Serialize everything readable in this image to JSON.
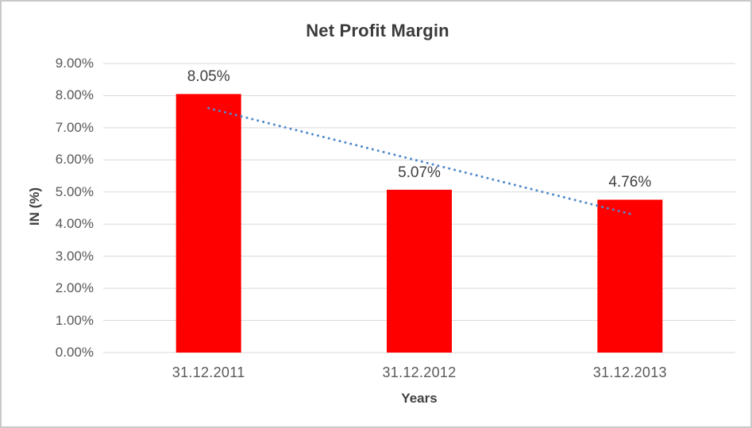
{
  "chart_data": {
    "type": "bar",
    "title": "Net Profit Margin",
    "categories": [
      "31.12.2011",
      "31.12.2012",
      "31.12.2013"
    ],
    "values": [
      8.05,
      5.07,
      4.76
    ],
    "data_labels": [
      "8.05%",
      "5.07%",
      "4.76%"
    ],
    "xlabel": "Years",
    "ylabel": "IN (%)",
    "ylim": [
      0,
      9
    ],
    "yticks": [
      0,
      1,
      2,
      3,
      4,
      5,
      6,
      7,
      8,
      9
    ],
    "ytick_labels": [
      "0.00%",
      "1.00%",
      "2.00%",
      "3.00%",
      "4.00%",
      "5.00%",
      "6.00%",
      "7.00%",
      "8.00%",
      "9.00%"
    ],
    "grid": true,
    "legend": "none",
    "bar_color": "#ff0000",
    "gridline_color": "#d9d9d9",
    "trendline": {
      "type": "linear",
      "style": "dotted",
      "color": "#5089cb",
      "start_value": 7.61,
      "end_value": 4.32
    }
  }
}
